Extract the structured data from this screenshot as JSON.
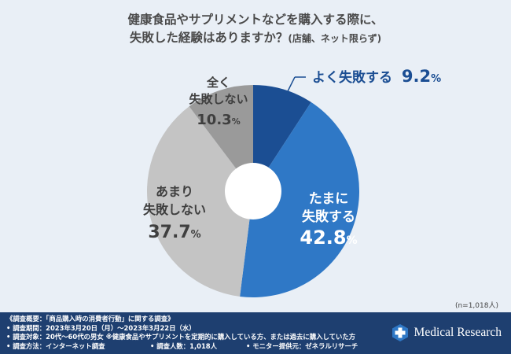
{
  "title": {
    "line1": "健康食品やサプリメントなどを購入する際に、",
    "line2_main": "失敗した経験はありますか？",
    "line2_small": "(店舗、ネット限らず)"
  },
  "sample_note": "(n=1,018人)",
  "colors": {
    "background": "#e9eff6",
    "dark_blue": "#1b4e93",
    "blue": "#2f78c6",
    "light_gray": "#c4c4c4",
    "dark_gray": "#9a9a9a",
    "footer": "#1e3f70"
  },
  "chart_data": {
    "type": "pie",
    "donut": true,
    "title": "健康食品やサプリメントなどを購入する際に、失敗した経験はありますか？(店舗、ネット限らず)",
    "unit": "%",
    "slices": [
      {
        "label": "よく失敗する",
        "value": 9.2,
        "color": "#1b4e93"
      },
      {
        "label": "たまに失敗する",
        "value": 42.8,
        "color": "#2f78c6"
      },
      {
        "label": "あまり失敗しない",
        "value": 37.7,
        "color": "#c4c4c4"
      },
      {
        "label": "全く失敗しない",
        "value": 10.3,
        "color": "#9a9a9a"
      }
    ],
    "labels": {
      "often": {
        "text": "よく失敗する",
        "num": "9.2",
        "pct": "%"
      },
      "sometimes": {
        "line1": "たまに",
        "line2": "失敗する",
        "num": "42.8",
        "pct": "%"
      },
      "rarely": {
        "line1": "あまり",
        "line2": "失敗しない",
        "num": "37.7",
        "pct": "%"
      },
      "never": {
        "line1": "全く",
        "line2": "失敗しない",
        "num": "10.3",
        "pct": "%"
      }
    }
  },
  "footer": {
    "summary": "《調査概要：「商品購入時の消費者行動」に関する調査》",
    "period": "• 調査期間：2023年3月20日（月）～2023年3月22日（水）",
    "target": "• 調査対象：20代～60代の男女 ※健康食品やサプリメントを定期的に購入している方、または過去に購入していた方",
    "method": "• 調査方法：インターネット調査",
    "count": "• 調査人数：1,018人",
    "provider": "• モニター提供元：ゼネラルリサーチ",
    "brand": "Medical Research"
  }
}
